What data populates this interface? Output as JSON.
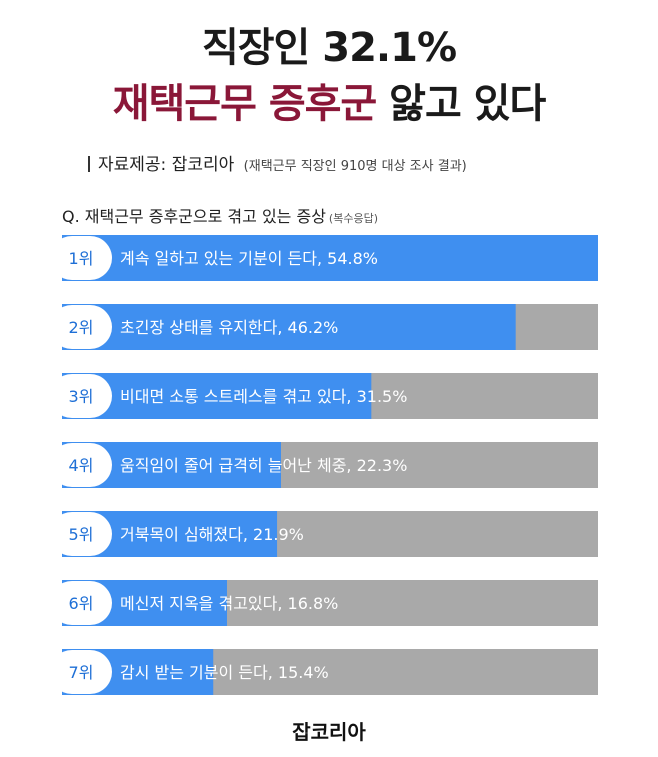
{
  "header": {
    "title_line1": "직장인 32.1%",
    "title_line2_highlight": "재택근무 증후군",
    "title_line2_rest": " 앓고 있다",
    "source_label": "자료제공: 잡코리아",
    "source_note": "(재택근무 직장인 910명 대상 조사 결과)"
  },
  "question": {
    "text": "Q. 재택근무 증후군으로 겪고 있는 증상",
    "note": "(복수응답)"
  },
  "footer": {
    "brand": "잡코리아"
  },
  "colors": {
    "bar_fill": "#3f8ff0",
    "bar_track": "#a9a9a9",
    "title_accent": "#8a1738",
    "rank_text": "#1e6fd6"
  },
  "chart_data": {
    "type": "bar",
    "orientation": "horizontal",
    "xlim": [
      0,
      100
    ],
    "unit": "%",
    "categories": [
      "1위",
      "2위",
      "3위",
      "4위",
      "5위",
      "6위",
      "7위"
    ],
    "labels": [
      "계속 일하고 있는 기분이 든다, 54.8%",
      "초긴장 상태를 유지한다, 46.2%",
      "비대면 소통 스트레스를 겪고 있다, 31.5%",
      "움직임이 줄어 급격히 늘어난 체중, 22.3%",
      "거북목이 심해졌다, 21.9%",
      "메신저 지옥을 겪고있다, 16.8%",
      "감시 받는 기분이 든다, 15.4%"
    ],
    "values": [
      54.8,
      46.2,
      31.5,
      22.3,
      21.9,
      16.8,
      15.4
    ]
  }
}
